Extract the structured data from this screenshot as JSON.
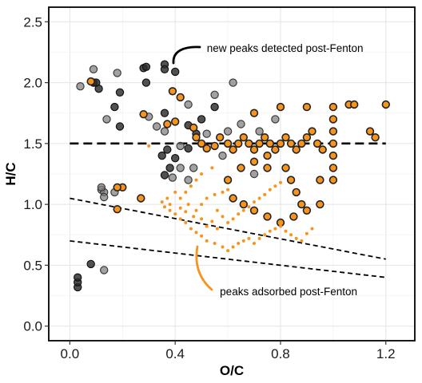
{
  "chart_data": {
    "type": "scatter",
    "xlabel": "O/C",
    "ylabel": "H/C",
    "xlim": [
      -0.08,
      1.31
    ],
    "ylim": [
      -0.12,
      2.62
    ],
    "x_ticks": [
      0.0,
      0.4,
      0.8,
      1.2
    ],
    "y_ticks": [
      0.0,
      0.5,
      1.0,
      1.5,
      2.0,
      2.5
    ],
    "x_tick_labels": [
      "0.0",
      "0.4",
      "0.8",
      "1.2"
    ],
    "y_tick_labels": [
      "0.0",
      "0.5",
      "1.0",
      "1.5",
      "2.0",
      "2.5"
    ],
    "grid": true,
    "colors": {
      "orange": "#f7941d",
      "dark": "#2b2b2b",
      "gray": "#7a7a7a",
      "line": "#000000"
    },
    "reference_lines": [
      {
        "style": "long-dash",
        "x": [
          0.0,
          1.2
        ],
        "y": [
          1.5,
          1.5
        ]
      },
      {
        "style": "dash",
        "x": [
          0.0,
          1.2
        ],
        "y": [
          1.05,
          0.55
        ]
      },
      {
        "style": "dash",
        "x": [
          0.0,
          1.2
        ],
        "y": [
          0.7,
          0.4
        ]
      }
    ],
    "annotations": [
      {
        "text": "new peaks detected post-Fenton",
        "x": 0.52,
        "y": 2.28
      },
      {
        "text": "peaks adsorbed post-Fenton",
        "x": 0.57,
        "y": 0.28
      }
    ],
    "series": [
      {
        "marker": "dark-filled circle",
        "points": [
          [
            0.03,
            0.32
          ],
          [
            0.03,
            0.36
          ],
          [
            0.03,
            0.4
          ],
          [
            0.08,
            0.51
          ],
          [
            0.17,
            1.8
          ],
          [
            0.19,
            1.64
          ],
          [
            0.28,
            2.12
          ],
          [
            0.29,
            2.13
          ],
          [
            0.29,
            2.0
          ],
          [
            0.36,
            2.15
          ],
          [
            0.36,
            2.11
          ],
          [
            0.4,
            2.09
          ],
          [
            0.09,
            2.0
          ],
          [
            0.1,
            2.0
          ],
          [
            0.11,
            1.95
          ],
          [
            0.19,
            1.92
          ],
          [
            0.36,
            1.75
          ],
          [
            0.45,
            1.65
          ],
          [
            0.55,
            1.8
          ],
          [
            0.45,
            1.46
          ],
          [
            0.4,
            1.38
          ],
          [
            0.38,
            1.3
          ],
          [
            0.36,
            1.24
          ],
          [
            0.5,
            1.7
          ],
          [
            0.48,
            1.58
          ],
          [
            0.35,
            1.4
          ],
          [
            0.37,
            1.45
          ]
        ]
      },
      {
        "marker": "gray-filled circle",
        "points": [
          [
            0.04,
            1.97
          ],
          [
            0.09,
            2.11
          ],
          [
            0.18,
            2.08
          ],
          [
            0.14,
            1.7
          ],
          [
            0.3,
            1.72
          ],
          [
            0.33,
            1.64
          ],
          [
            0.36,
            1.6
          ],
          [
            0.62,
            2.0
          ],
          [
            0.55,
            1.9
          ],
          [
            0.45,
            1.82
          ],
          [
            0.12,
            1.12
          ],
          [
            0.13,
            1.1
          ],
          [
            0.17,
            1.1
          ],
          [
            0.13,
            1.06
          ],
          [
            0.12,
            1.14
          ],
          [
            0.13,
            0.46
          ],
          [
            0.45,
            1.2
          ],
          [
            0.42,
            1.3
          ],
          [
            0.39,
            1.22
          ],
          [
            0.47,
            1.3
          ],
          [
            0.58,
            1.4
          ],
          [
            0.6,
            1.6
          ],
          [
            0.65,
            1.66
          ],
          [
            0.7,
            1.25
          ],
          [
            0.72,
            1.6
          ],
          [
            0.78,
            1.7
          ],
          [
            0.52,
            1.58
          ],
          [
            0.42,
            1.48
          ]
        ]
      },
      {
        "marker": "orange circle with dark outline",
        "points": [
          [
            0.08,
            2.01
          ],
          [
            0.28,
            1.74
          ],
          [
            0.37,
            1.66
          ],
          [
            0.4,
            1.68
          ],
          [
            0.39,
            1.93
          ],
          [
            0.42,
            1.88
          ],
          [
            0.47,
            1.63
          ],
          [
            0.48,
            1.55
          ],
          [
            0.5,
            1.5
          ],
          [
            0.52,
            1.46
          ],
          [
            0.55,
            1.48
          ],
          [
            0.57,
            1.55
          ],
          [
            0.6,
            1.5
          ],
          [
            0.62,
            1.45
          ],
          [
            0.64,
            1.5
          ],
          [
            0.66,
            1.55
          ],
          [
            0.68,
            1.5
          ],
          [
            0.7,
            1.45
          ],
          [
            0.72,
            1.5
          ],
          [
            0.74,
            1.55
          ],
          [
            0.76,
            1.5
          ],
          [
            0.78,
            1.45
          ],
          [
            0.8,
            1.5
          ],
          [
            0.82,
            1.55
          ],
          [
            0.84,
            1.5
          ],
          [
            0.86,
            1.45
          ],
          [
            0.88,
            1.5
          ],
          [
            0.9,
            1.55
          ],
          [
            0.92,
            1.6
          ],
          [
            0.94,
            1.5
          ],
          [
            0.96,
            1.45
          ],
          [
            1.0,
            1.8
          ],
          [
            1.0,
            1.7
          ],
          [
            1.0,
            1.6
          ],
          [
            1.0,
            1.5
          ],
          [
            1.0,
            1.4
          ],
          [
            1.0,
            1.3
          ],
          [
            1.0,
            1.2
          ],
          [
            1.06,
            1.82
          ],
          [
            1.08,
            1.82
          ],
          [
            1.14,
            1.6
          ],
          [
            1.16,
            1.55
          ],
          [
            1.2,
            1.82
          ],
          [
            0.82,
            1.3
          ],
          [
            0.84,
            1.2
          ],
          [
            0.86,
            1.1
          ],
          [
            0.88,
            1.0
          ],
          [
            0.9,
            0.95
          ],
          [
            0.85,
            0.9
          ],
          [
            0.8,
            0.85
          ],
          [
            0.75,
            0.9
          ],
          [
            0.7,
            0.95
          ],
          [
            0.66,
            1.0
          ],
          [
            0.62,
            1.05
          ],
          [
            0.18,
            0.96
          ],
          [
            0.2,
            1.14
          ],
          [
            0.18,
            1.14
          ],
          [
            0.27,
            1.05
          ],
          [
            0.6,
            1.2
          ],
          [
            0.65,
            1.3
          ],
          [
            0.7,
            1.35
          ],
          [
            0.75,
            1.4
          ],
          [
            0.9,
            1.8
          ],
          [
            0.8,
            1.8
          ],
          [
            0.7,
            1.75
          ],
          [
            0.75,
            1.3
          ],
          [
            0.95,
            1.2
          ],
          [
            0.95,
            1.0
          ]
        ]
      },
      {
        "marker": "small orange dot",
        "points": [
          [
            0.3,
            1.48
          ],
          [
            0.35,
            1.02
          ],
          [
            0.38,
            0.95
          ],
          [
            0.4,
            0.92
          ],
          [
            0.42,
            0.88
          ],
          [
            0.44,
            0.85
          ],
          [
            0.46,
            0.8
          ],
          [
            0.48,
            0.77
          ],
          [
            0.5,
            0.74
          ],
          [
            0.52,
            0.7
          ],
          [
            0.55,
            0.68
          ],
          [
            0.58,
            0.65
          ],
          [
            0.6,
            0.62
          ],
          [
            0.62,
            0.65
          ],
          [
            0.64,
            0.68
          ],
          [
            0.66,
            0.7
          ],
          [
            0.68,
            0.72
          ],
          [
            0.7,
            0.68
          ],
          [
            0.72,
            0.72
          ],
          [
            0.74,
            0.75
          ],
          [
            0.76,
            0.78
          ],
          [
            0.78,
            0.8
          ],
          [
            0.8,
            0.82
          ],
          [
            0.82,
            0.78
          ],
          [
            0.84,
            0.75
          ],
          [
            0.86,
            0.72
          ],
          [
            0.88,
            0.7
          ],
          [
            0.9,
            0.76
          ],
          [
            0.92,
            0.8
          ],
          [
            0.48,
            0.95
          ],
          [
            0.5,
            1.0
          ],
          [
            0.52,
            1.05
          ],
          [
            0.55,
            1.08
          ],
          [
            0.58,
            1.1
          ],
          [
            0.6,
            1.12
          ],
          [
            0.45,
            1.0
          ],
          [
            0.42,
            1.05
          ],
          [
            0.4,
            1.1
          ],
          [
            0.44,
            1.1
          ],
          [
            0.46,
            1.15
          ],
          [
            0.48,
            1.2
          ],
          [
            0.5,
            1.25
          ],
          [
            0.54,
            1.3
          ],
          [
            0.56,
            0.95
          ],
          [
            0.58,
            0.9
          ],
          [
            0.6,
            0.85
          ],
          [
            0.62,
            0.88
          ],
          [
            0.64,
            0.92
          ],
          [
            0.66,
            0.95
          ],
          [
            0.68,
            0.98
          ],
          [
            0.7,
            1.02
          ],
          [
            0.72,
            1.05
          ],
          [
            0.74,
            1.08
          ],
          [
            0.76,
            1.12
          ],
          [
            0.78,
            1.15
          ],
          [
            0.8,
            1.18
          ],
          [
            0.38,
            1.0
          ],
          [
            0.37,
            1.05
          ],
          [
            0.36,
            0.98
          ],
          [
            0.52,
            0.82
          ],
          [
            0.54,
            0.86
          ],
          [
            0.56,
            0.8
          ],
          [
            0.5,
            0.88
          ],
          [
            0.47,
            0.9
          ],
          [
            0.44,
            0.94
          ],
          [
            0.42,
            0.97
          ]
        ]
      }
    ]
  }
}
